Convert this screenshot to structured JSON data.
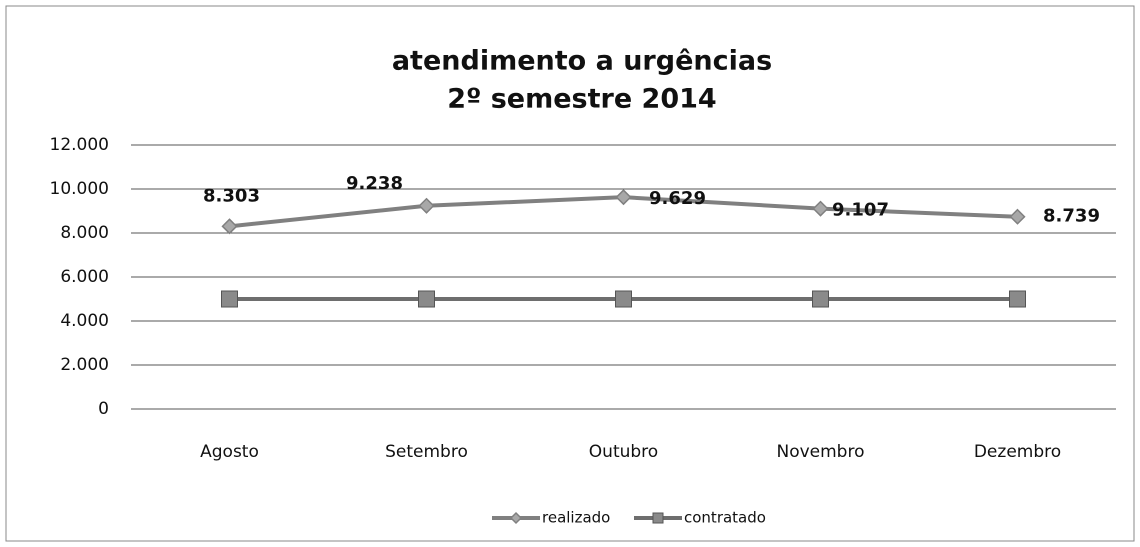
{
  "chart_data": {
    "type": "line",
    "title": "atendimento a urgências",
    "subtitle": "2º semestre 2014",
    "categories": [
      "Agosto",
      "Setembro",
      "Outubro",
      "Novembro",
      "Dezembro"
    ],
    "series": [
      {
        "name": "realizado",
        "color": "#808080",
        "marker": "diamond",
        "values": [
          8303,
          9238,
          9629,
          9107,
          8739
        ],
        "value_labels": [
          "8.303",
          "9.238",
          "9.629",
          "9.107",
          "8.739"
        ]
      },
      {
        "name": "contratado",
        "color": "#6e6e6e",
        "marker": "square",
        "values": [
          5000,
          5000,
          5000,
          5000,
          5000
        ]
      }
    ],
    "ylim": [
      0,
      12000
    ],
    "yticks": [
      0,
      {
        "value": 2000,
        "label": "2.000"
      },
      {
        "value": 4000,
        "label": "4.000"
      },
      {
        "value": 6000,
        "label": "6.000"
      },
      {
        "value": 8000,
        "label": "8.000"
      },
      {
        "value": 10000,
        "label": "10.000"
      },
      {
        "value": 12000,
        "label": "12.000"
      }
    ],
    "grid": true,
    "legend": "bottom"
  }
}
